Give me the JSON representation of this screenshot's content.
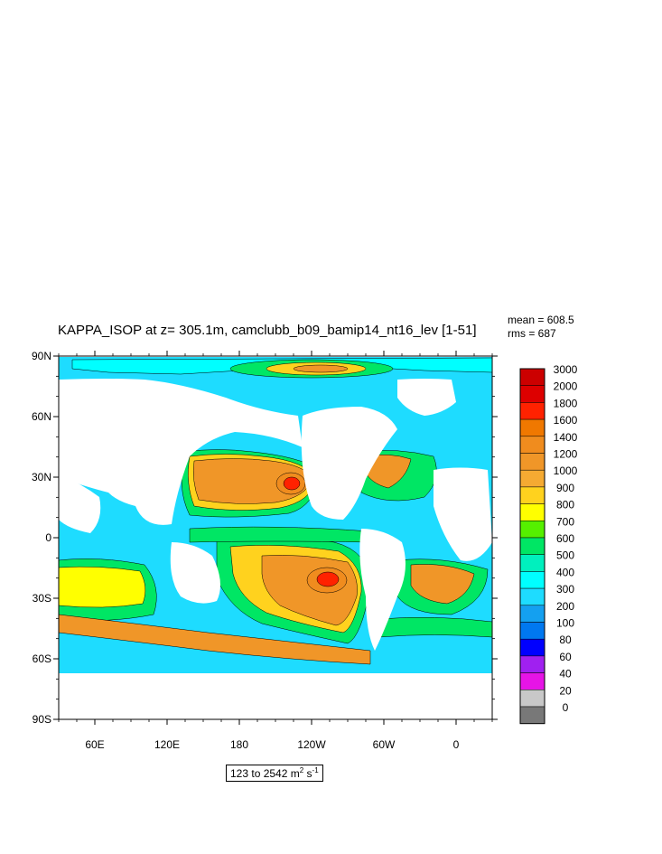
{
  "title": "KAPPA_ISOP at z= 305.1m, camclubb_b09_bamip14_nt16_lev [1-51]",
  "stats": {
    "mean": "mean = 608.5",
    "rms": "rms = 687"
  },
  "units": {
    "range": "123 to 2542 m",
    "m_exp": "2",
    "s_unit": " s",
    "s_exp": "-1"
  },
  "axes": {
    "lat_labels": [
      "90N",
      "60N",
      "30N",
      "0",
      "30S",
      "60S",
      "90S"
    ],
    "lon_labels": [
      "60E",
      "120E",
      "180",
      "120W",
      "60W",
      "0"
    ]
  },
  "colorbar": {
    "levels": [
      "3000",
      "2000",
      "1800",
      "1600",
      "1400",
      "1200",
      "1000",
      "900",
      "800",
      "700",
      "600",
      "500",
      "400",
      "300",
      "200",
      "100",
      "80",
      "60",
      "40",
      "20",
      "0"
    ],
    "colors": [
      "#cc0000",
      "#dd0000",
      "#ff2200",
      "#f07800",
      "#f08c1e",
      "#f09628",
      "#f5aa32",
      "#ffd21e",
      "#ffff00",
      "#55f000",
      "#00e664",
      "#00f0be",
      "#00ffff",
      "#1edcff",
      "#14a0f0",
      "#0078f0",
      "#0000ff",
      "#a020f0",
      "#e614e6",
      "#c8c8c8",
      "#787878"
    ]
  }
}
